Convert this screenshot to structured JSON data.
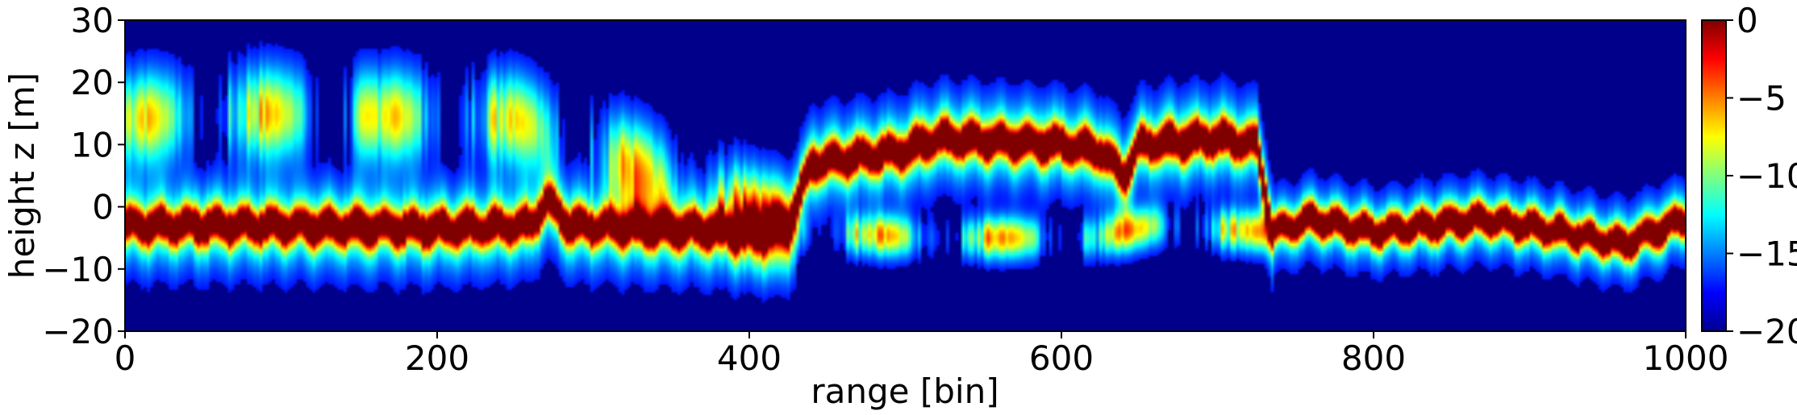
{
  "chart_data": {
    "type": "heatmap",
    "title": "",
    "xlabel": "range [bin]",
    "ylabel": "height z [m]",
    "xlim": [
      0,
      1000
    ],
    "ylim": [
      -20,
      30
    ],
    "xticks": [
      "0",
      "200",
      "400",
      "600",
      "800",
      "1000"
    ],
    "yticks": [
      "30",
      "20",
      "10",
      "0",
      "−10",
      "−20"
    ],
    "colormap": "jet",
    "colorbar": {
      "range": [
        -20,
        0
      ],
      "ticks": [
        "0",
        "−5",
        "−10",
        "−15",
        "−20"
      ]
    },
    "background_color": "#00008b",
    "grid": false,
    "main_ridge": [
      {
        "x": 0,
        "z": -3
      },
      {
        "x": 80,
        "z": -3
      },
      {
        "x": 200,
        "z": -3.5
      },
      {
        "x": 260,
        "z": -3
      },
      {
        "x": 270,
        "z": 1
      },
      {
        "x": 285,
        "z": -3
      },
      {
        "x": 400,
        "z": -4
      },
      {
        "x": 425,
        "z": -3
      },
      {
        "x": 440,
        "z": 7
      },
      {
        "x": 500,
        "z": 9
      },
      {
        "x": 520,
        "z": 11
      },
      {
        "x": 600,
        "z": 10
      },
      {
        "x": 625,
        "z": 9
      },
      {
        "x": 640,
        "z": 5
      },
      {
        "x": 650,
        "z": 10
      },
      {
        "x": 700,
        "z": 11
      },
      {
        "x": 725,
        "z": 10
      },
      {
        "x": 735,
        "z": -4
      },
      {
        "x": 760,
        "z": -2
      },
      {
        "x": 800,
        "z": -4
      },
      {
        "x": 870,
        "z": -2
      },
      {
        "x": 920,
        "z": -4
      },
      {
        "x": 960,
        "z": -6
      },
      {
        "x": 1000,
        "z": -2
      }
    ],
    "secondary_band": [
      {
        "x": 0,
        "z": 14
      },
      {
        "x": 80,
        "z": 15
      },
      {
        "x": 250,
        "z": 14
      },
      {
        "x": 430,
        "z": -4
      },
      {
        "x": 520,
        "z": -5
      },
      {
        "x": 620,
        "z": -5
      },
      {
        "x": 660,
        "z": -3
      },
      {
        "x": 730,
        "z": -4
      }
    ]
  }
}
